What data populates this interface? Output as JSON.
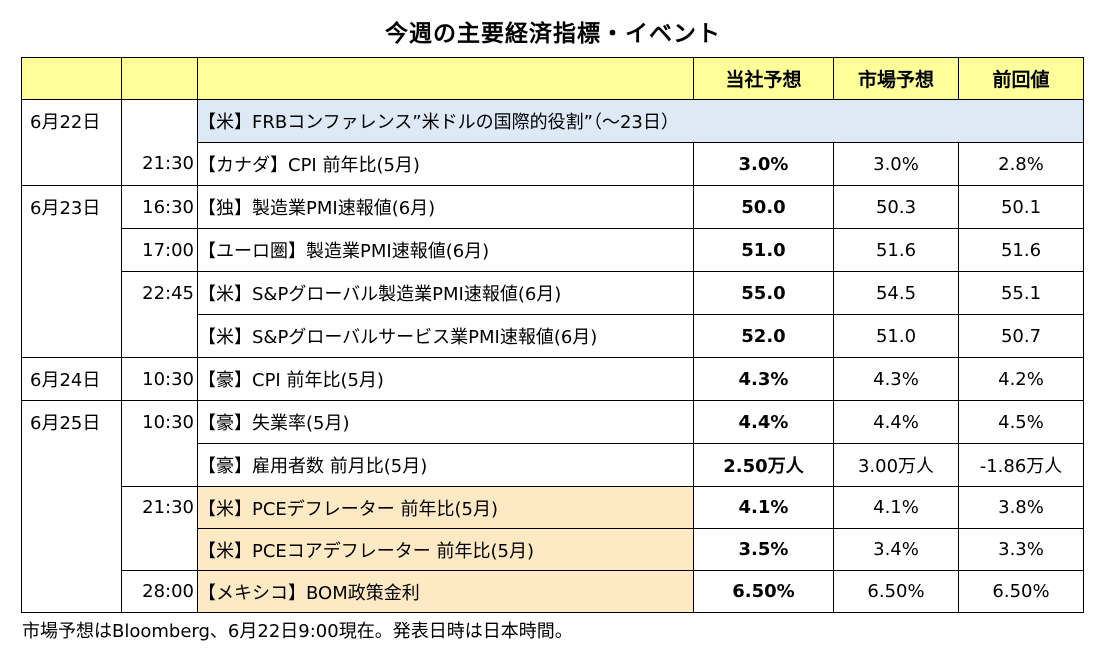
{
  "title": "今週の主要経済指標・イベント",
  "headers": {
    "own": "当社予想",
    "market": "市場予想",
    "prev": "前回値"
  },
  "rows": [
    {
      "date": "6月22日",
      "time": "",
      "event": "【米】FRBコンファレンス”米ドルの国際的役割”（～23日）",
      "own": "",
      "market": "",
      "prev": ""
    },
    {
      "date": "",
      "time": "21:30",
      "event": "【カナダ】CPI 前年比(5月)",
      "own": "3.0%",
      "market": "3.0%",
      "prev": "2.8%"
    },
    {
      "date": "6月23日",
      "time": "16:30",
      "event": "【独】製造業PMI速報値(6月)",
      "own": "50.0",
      "market": "50.3",
      "prev": "50.1"
    },
    {
      "date": "",
      "time": "17:00",
      "event": "【ユーロ圏】製造業PMI速報値(6月)",
      "own": "51.0",
      "market": "51.6",
      "prev": "51.6"
    },
    {
      "date": "",
      "time": "22:45",
      "event": "【米】S&Pグローバル製造業PMI速報値(6月)",
      "own": "55.0",
      "market": "54.5",
      "prev": "55.1"
    },
    {
      "date": "",
      "time": "",
      "event": "【米】S&Pグローバルサービス業PMI速報値(6月)",
      "own": "52.0",
      "market": "51.0",
      "prev": "50.7"
    },
    {
      "date": "6月24日",
      "time": "10:30",
      "event": "【豪】CPI 前年比(5月)",
      "own": "4.3%",
      "market": "4.3%",
      "prev": "4.2%"
    },
    {
      "date": "6月25日",
      "time": "10:30",
      "event": "【豪】失業率(5月)",
      "own": "4.4%",
      "market": "4.4%",
      "prev": "4.5%"
    },
    {
      "date": "",
      "time": "",
      "event": "【豪】雇用者数 前月比(5月)",
      "own": "2.50万人",
      "market": "3.00万人",
      "prev": "-1.86万人"
    },
    {
      "date": "",
      "time": "21:30",
      "event": "【米】PCEデフレーター 前年比(5月)",
      "own": "4.1%",
      "market": "4.1%",
      "prev": "3.8%"
    },
    {
      "date": "",
      "time": "",
      "event": "【米】PCEコアデフレーター 前年比(5月)",
      "own": "3.5%",
      "market": "3.4%",
      "prev": "3.3%"
    },
    {
      "date": "",
      "time": "28:00",
      "event": "【メキシコ】BOM政策金利",
      "own": "6.50%",
      "market": "6.50%",
      "prev": "6.50%"
    }
  ],
  "footer": "市場予想はBloomberg、6月22日9:00現在。発表日時は日本時間。"
}
